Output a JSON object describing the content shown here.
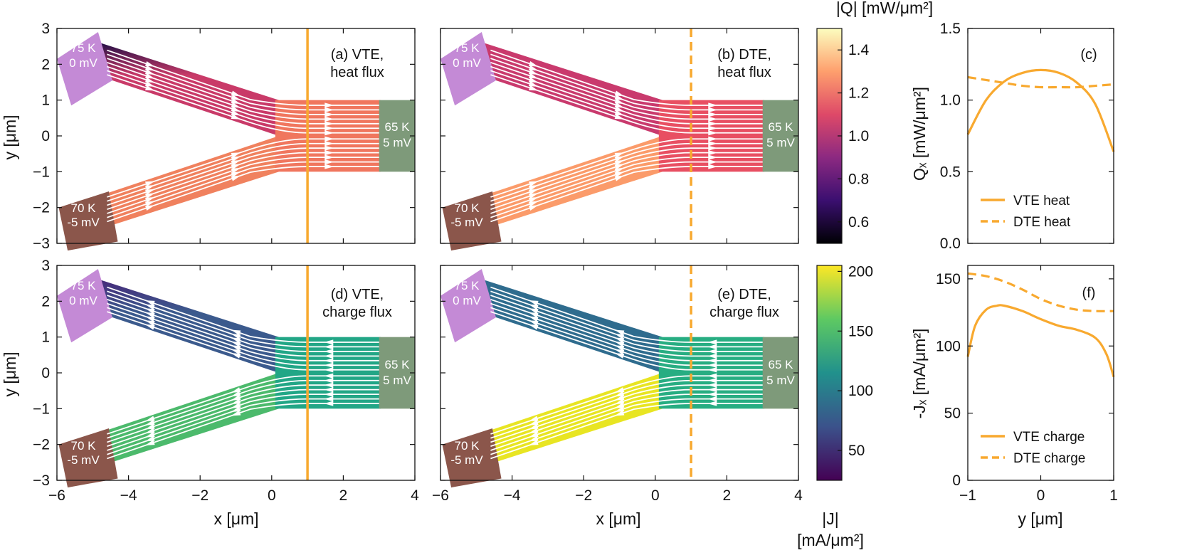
{
  "colorbars": {
    "heat": {
      "label": "|Q| [mW/μm²]",
      "ticks": [
        "0.6",
        "0.8",
        "1.0",
        "1.2",
        "1.4"
      ],
      "tick_values": [
        0.6,
        0.8,
        1.0,
        1.2,
        1.4
      ],
      "range": [
        0.5,
        1.5
      ],
      "colors": [
        "#000004",
        "#3b0f70",
        "#8c2981",
        "#de4968",
        "#fe9f6d",
        "#fcfdbf"
      ]
    },
    "charge": {
      "label_line1": "|J|",
      "label_line2": "[mA/μm²]",
      "ticks": [
        "50",
        "100",
        "150",
        "200"
      ],
      "tick_values": [
        50,
        100,
        150,
        200
      ],
      "range": [
        25,
        205
      ],
      "colors": [
        "#440154",
        "#3b528b",
        "#21918c",
        "#5ec962",
        "#fde725"
      ]
    }
  },
  "leads": {
    "top_left": {
      "line1": "75 K",
      "line2": "0 mV",
      "color": "#c48ad6"
    },
    "bottom_left": {
      "line1": "70 K",
      "line2": "-5 mV",
      "color": "#8b564b"
    },
    "right": {
      "line1": "65 K",
      "line2": "5 mV",
      "color": "#7e9a7a"
    }
  },
  "maps": [
    {
      "id": "a",
      "line1": "(a) VTE,",
      "line2": "heat flux",
      "flux": "heat",
      "cut_style": "solid",
      "colors": {
        "upper": "#c93a68",
        "upper_edge": "#241047",
        "lower": "#f0815e",
        "channel": "#f0765e"
      }
    },
    {
      "id": "b",
      "line1": "(b) DTE,",
      "line2": "heat flux",
      "flux": "heat",
      "cut_style": "dashed",
      "colors": {
        "upper": "#c93a6d",
        "upper_edge": "#c93a6d",
        "lower": "#fb9b6a",
        "channel": "#e84f62"
      }
    },
    {
      "id": "d",
      "line1": "(d) VTE,",
      "line2": "charge flux",
      "flux": "charge",
      "cut_style": "solid",
      "colors": {
        "upper": "#3b5a8d",
        "upper_edge": "#472a7a",
        "lower": "#4cba6c",
        "channel": "#22a686"
      }
    },
    {
      "id": "e",
      "line1": "(e) DTE,",
      "line2": "charge flux",
      "flux": "charge",
      "cut_style": "dashed",
      "colors": {
        "upper": "#2f6c8e",
        "upper_edge": "#2f6c8e",
        "lower": "#e8e523",
        "channel": "#27ad82"
      }
    }
  ],
  "map_axes": {
    "xlabel": "x [μm]",
    "ylabel": "y [μm]",
    "x_ticks": [
      "−6",
      "−4",
      "−2",
      "0",
      "2",
      "4"
    ],
    "x_tick_values": [
      -6,
      -4,
      -2,
      0,
      2,
      4
    ],
    "y_ticks": [
      "3",
      "2",
      "1",
      "0",
      "−1",
      "−2",
      "−3"
    ],
    "y_tick_values": [
      3,
      2,
      1,
      0,
      -1,
      -2,
      -3
    ],
    "xlim": [
      -6,
      4
    ],
    "ylim": [
      -3,
      3
    ],
    "cut_x": 1
  },
  "accent_color": "#f8a92f",
  "chart_data": [
    {
      "type": "line",
      "panel": "(c)",
      "xlabel": "y [μm]",
      "ylabel": "Qₓ [mW/μm²]",
      "xlim": [
        -1,
        1
      ],
      "ylim": [
        0,
        1.5
      ],
      "y_ticks": [
        "0.0",
        "0.5",
        "1.0",
        "1.5"
      ],
      "y_tick_values": [
        0,
        0.5,
        1.0,
        1.5
      ],
      "legend": "bottom-left",
      "series": [
        {
          "name": "VTE heat",
          "style": "solid",
          "x": [
            -1,
            -0.75,
            -0.5,
            -0.25,
            0,
            0.25,
            0.5,
            0.75,
            1
          ],
          "y": [
            0.76,
            1.0,
            1.13,
            1.19,
            1.21,
            1.19,
            1.12,
            0.97,
            0.64
          ]
        },
        {
          "name": "DTE heat",
          "style": "dashed",
          "x": [
            -1,
            -0.75,
            -0.5,
            -0.25,
            0,
            0.25,
            0.5,
            0.75,
            1
          ],
          "y": [
            1.16,
            1.14,
            1.12,
            1.1,
            1.09,
            1.09,
            1.09,
            1.1,
            1.11
          ]
        }
      ]
    },
    {
      "type": "line",
      "panel": "(f)",
      "xlabel": "y [μm]",
      "ylabel": "-Jₓ [mA/μm²]",
      "xlim": [
        -1,
        1
      ],
      "ylim": [
        0,
        160
      ],
      "x_ticks": [
        "−1",
        "0",
        "1"
      ],
      "x_tick_values": [
        -1,
        0,
        1
      ],
      "y_ticks": [
        "0",
        "50",
        "100",
        "150"
      ],
      "y_tick_values": [
        0,
        50,
        100,
        150
      ],
      "legend": "bottom-left",
      "series": [
        {
          "name": "VTE charge",
          "style": "solid",
          "x": [
            -1,
            -0.9,
            -0.75,
            -0.6,
            -0.5,
            -0.25,
            0,
            0.25,
            0.5,
            0.75,
            0.9,
            1
          ],
          "y": [
            92,
            115,
            127,
            130,
            130,
            126,
            120,
            115,
            112,
            106,
            94,
            77
          ]
        },
        {
          "name": "DTE charge",
          "style": "dashed",
          "x": [
            -1,
            -0.75,
            -0.5,
            -0.25,
            0,
            0.25,
            0.5,
            0.75,
            1
          ],
          "y": [
            154,
            152,
            148,
            142,
            135,
            130,
            127,
            126,
            126
          ]
        }
      ]
    }
  ]
}
